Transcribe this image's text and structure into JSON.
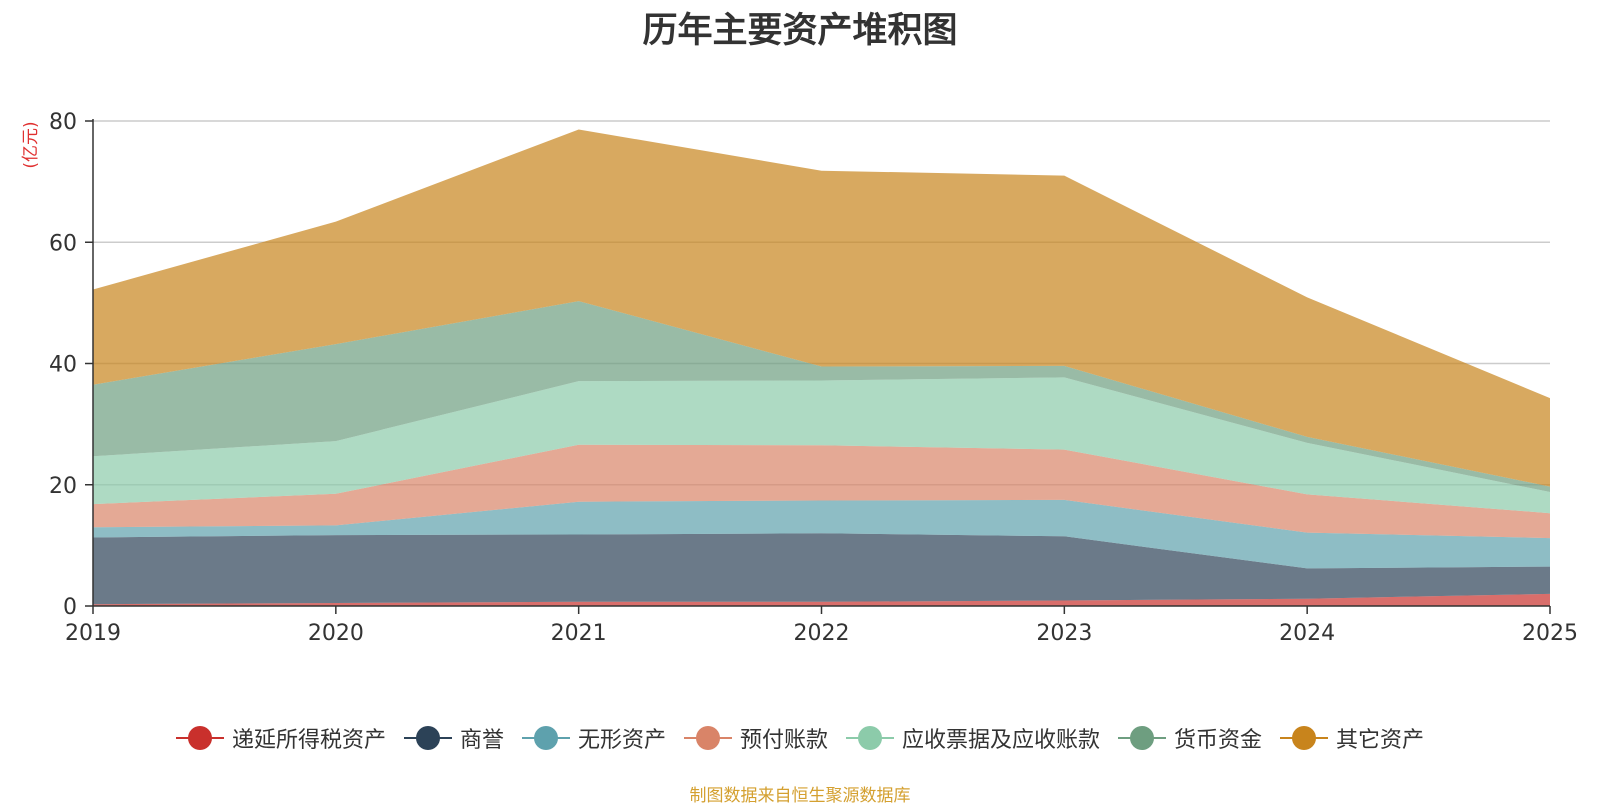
{
  "chart_data": {
    "type": "area",
    "stacked": true,
    "title": "历年主要资产堆积图",
    "unit_label": "(亿元)",
    "x": [
      "2019",
      "2020",
      "2021",
      "2022",
      "2023",
      "2024",
      "2025"
    ],
    "ylim": [
      0,
      80
    ],
    "yticks": [
      0,
      20,
      40,
      60,
      80
    ],
    "grid": true,
    "legend_position": "bottom",
    "series": [
      {
        "name": "递延所得税资产",
        "color": "#c9302c",
        "values": [
          0.3,
          0.5,
          0.7,
          0.7,
          0.9,
          1.2,
          2.0
        ]
      },
      {
        "name": "商誉",
        "color": "#2c4257",
        "values": [
          11.0,
          11.2,
          11.1,
          11.3,
          10.6,
          5.0,
          4.5
        ]
      },
      {
        "name": "无形资产",
        "color": "#5ea1ad",
        "values": [
          1.7,
          1.6,
          5.4,
          5.4,
          6.0,
          5.9,
          4.7
        ]
      },
      {
        "name": "预付账款",
        "color": "#d98468",
        "values": [
          3.8,
          5.2,
          9.4,
          9.1,
          8.3,
          6.3,
          4.1
        ]
      },
      {
        "name": "应收票据及应收账款",
        "color": "#8ccbaa",
        "values": [
          7.9,
          8.7,
          10.5,
          10.7,
          11.9,
          8.5,
          3.5
        ]
      },
      {
        "name": "货币资金",
        "color": "#6e9e80",
        "values": [
          11.8,
          16.0,
          13.2,
          2.3,
          1.9,
          1.0,
          0.9
        ]
      },
      {
        "name": "其它资产",
        "color": "#c8841c",
        "values": [
          15.7,
          20.2,
          28.3,
          32.3,
          31.4,
          23.0,
          14.6
        ]
      }
    ]
  },
  "footer": {
    "source": "制图数据来自恒生聚源数据库"
  }
}
